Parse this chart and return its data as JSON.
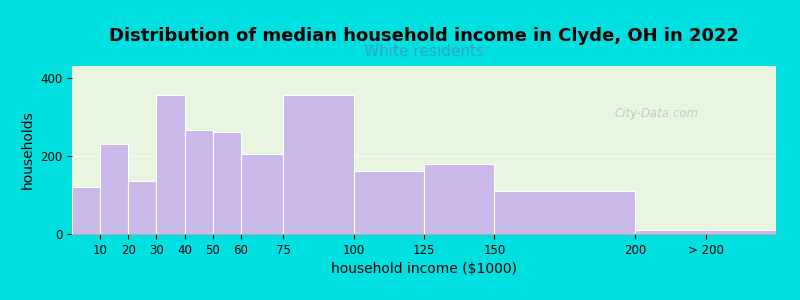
{
  "title": "Distribution of median household income in Clyde, OH in 2022",
  "subtitle": "White residents",
  "xlabel": "household income ($1000)",
  "ylabel": "households",
  "bar_lefts": [
    0,
    10,
    20,
    30,
    40,
    50,
    60,
    75,
    100,
    125,
    150,
    200
  ],
  "bar_widths": [
    10,
    10,
    10,
    10,
    10,
    10,
    15,
    25,
    25,
    25,
    50,
    50
  ],
  "bar_values": [
    120,
    230,
    135,
    355,
    265,
    260,
    205,
    355,
    160,
    180,
    110,
    10
  ],
  "xtick_positions": [
    10,
    20,
    30,
    40,
    50,
    60,
    75,
    100,
    125,
    150,
    200,
    225
  ],
  "xtick_labels": [
    "10",
    "20",
    "30",
    "40",
    "50",
    "60",
    "75",
    "100",
    "125",
    "150",
    "200",
    "> 200"
  ],
  "bar_color": "#c9b8e8",
  "bar_edge_color": "#ffffff",
  "background_outer": "#00e0e0",
  "background_plot": "#e8f5e0",
  "title_fontsize": 13,
  "subtitle_fontsize": 11,
  "subtitle_color": "#30a8c0",
  "axis_label_fontsize": 10,
  "tick_fontsize": 8.5,
  "ylim": [
    0,
    430
  ],
  "xlim": [
    0,
    250
  ],
  "yticks": [
    0,
    200,
    400
  ],
  "watermark": "City-Data.com"
}
